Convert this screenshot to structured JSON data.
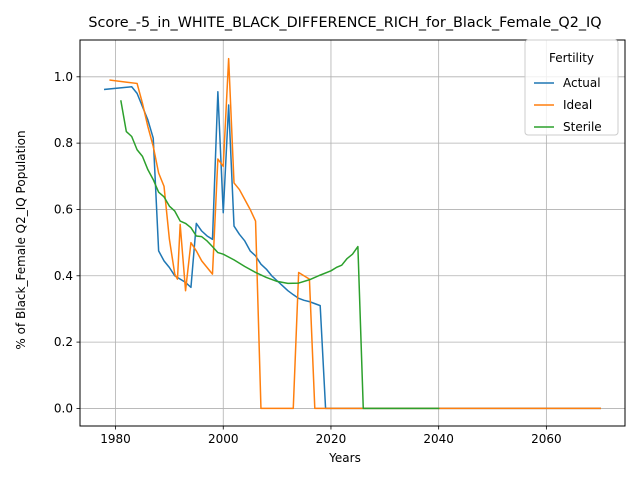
{
  "chart_data": {
    "type": "line",
    "title": "Score_-5_in_WHITE_BLACK_DIFFERENCE_RICH_for_Black_Female_Q2_IQ",
    "xlabel": "Years",
    "ylabel": "% of Black_Female Q2_IQ Population",
    "xlim": [
      1973.4,
      2074.6
    ],
    "ylim": [
      -0.053,
      1.111
    ],
    "xticks": [
      1980,
      2000,
      2020,
      2040,
      2060
    ],
    "yticks": [
      0.0,
      0.2,
      0.4,
      0.6,
      0.8,
      1.0
    ],
    "xtick_labels": [
      "1980",
      "2000",
      "2020",
      "2040",
      "2060"
    ],
    "ytick_labels": [
      "0.0",
      "0.2",
      "0.4",
      "0.6",
      "0.8",
      "1.0"
    ],
    "grid": true,
    "legend": {
      "title": "Fertility",
      "position": "top-right"
    },
    "series": [
      {
        "name": "Actual",
        "color": "#1f77b4",
        "points": [
          [
            1978,
            0.962
          ],
          [
            1983,
            0.97
          ],
          [
            1984,
            0.95
          ],
          [
            1985,
            0.91
          ],
          [
            1986,
            0.87
          ],
          [
            1987,
            0.815
          ],
          [
            1988,
            0.475
          ],
          [
            1989,
            0.445
          ],
          [
            1990,
            0.425
          ],
          [
            1991,
            0.4
          ],
          [
            1992,
            0.39
          ],
          [
            1993,
            0.38
          ],
          [
            1994,
            0.365
          ],
          [
            1995,
            0.558
          ],
          [
            1996,
            0.535
          ],
          [
            1997,
            0.52
          ],
          [
            1998,
            0.51
          ],
          [
            1999,
            0.955
          ],
          [
            2000,
            0.59
          ],
          [
            2001,
            0.915
          ],
          [
            2002,
            0.55
          ],
          [
            2003,
            0.525
          ],
          [
            2004,
            0.505
          ],
          [
            2005,
            0.475
          ],
          [
            2006,
            0.46
          ],
          [
            2007,
            0.435
          ],
          [
            2008,
            0.42
          ],
          [
            2009,
            0.4
          ],
          [
            2010,
            0.385
          ],
          [
            2011,
            0.37
          ],
          [
            2012,
            0.355
          ],
          [
            2013,
            0.343
          ],
          [
            2014,
            0.332
          ],
          [
            2015,
            0.326
          ],
          [
            2016,
            0.322
          ],
          [
            2017,
            0.316
          ],
          [
            2018,
            0.31
          ],
          [
            2019,
            0.0
          ],
          [
            2070,
            0.0
          ]
        ]
      },
      {
        "name": "Ideal",
        "color": "#ff7f0e",
        "points": [
          [
            1979,
            0.99
          ],
          [
            1984,
            0.98
          ],
          [
            1985,
            0.92
          ],
          [
            1986,
            0.85
          ],
          [
            1987,
            0.79
          ],
          [
            1988,
            0.71
          ],
          [
            1989,
            0.67
          ],
          [
            1990,
            0.51
          ],
          [
            1991,
            0.405
          ],
          [
            1991.5,
            0.39
          ],
          [
            1992,
            0.555
          ],
          [
            1993,
            0.355
          ],
          [
            1994,
            0.5
          ],
          [
            1995,
            0.475
          ],
          [
            1996,
            0.445
          ],
          [
            1997,
            0.425
          ],
          [
            1998,
            0.405
          ],
          [
            1999,
            0.752
          ],
          [
            2000,
            0.73
          ],
          [
            2001,
            1.055
          ],
          [
            2002,
            0.68
          ],
          [
            2003,
            0.66
          ],
          [
            2004,
            0.63
          ],
          [
            2005,
            0.6
          ],
          [
            2006,
            0.565
          ],
          [
            2007,
            0.0
          ],
          [
            2013,
            0.0
          ],
          [
            2014,
            0.41
          ],
          [
            2016,
            0.39
          ],
          [
            2017,
            0.0
          ],
          [
            2070,
            0.0
          ]
        ]
      },
      {
        "name": "Sterile",
        "color": "#2ca02c",
        "points": [
          [
            1981,
            0.927
          ],
          [
            1982,
            0.835
          ],
          [
            1983,
            0.82
          ],
          [
            1984,
            0.78
          ],
          [
            1985,
            0.76
          ],
          [
            1986,
            0.72
          ],
          [
            1987,
            0.69
          ],
          [
            1988,
            0.652
          ],
          [
            1989,
            0.638
          ],
          [
            1990,
            0.61
          ],
          [
            1991,
            0.595
          ],
          [
            1992,
            0.565
          ],
          [
            1993,
            0.558
          ],
          [
            1994,
            0.545
          ],
          [
            1995,
            0.52
          ],
          [
            1996,
            0.518
          ],
          [
            1997,
            0.505
          ],
          [
            1998,
            0.488
          ],
          [
            1999,
            0.47
          ],
          [
            2000,
            0.465
          ],
          [
            2002,
            0.448
          ],
          [
            2004,
            0.428
          ],
          [
            2006,
            0.41
          ],
          [
            2008,
            0.395
          ],
          [
            2010,
            0.383
          ],
          [
            2012,
            0.377
          ],
          [
            2014,
            0.378
          ],
          [
            2016,
            0.388
          ],
          [
            2018,
            0.402
          ],
          [
            2020,
            0.415
          ],
          [
            2021,
            0.425
          ],
          [
            2022,
            0.432
          ],
          [
            2023,
            0.452
          ],
          [
            2024,
            0.465
          ],
          [
            2025,
            0.488
          ],
          [
            2026,
            0.0
          ],
          [
            2040,
            0.0
          ]
        ]
      }
    ]
  }
}
